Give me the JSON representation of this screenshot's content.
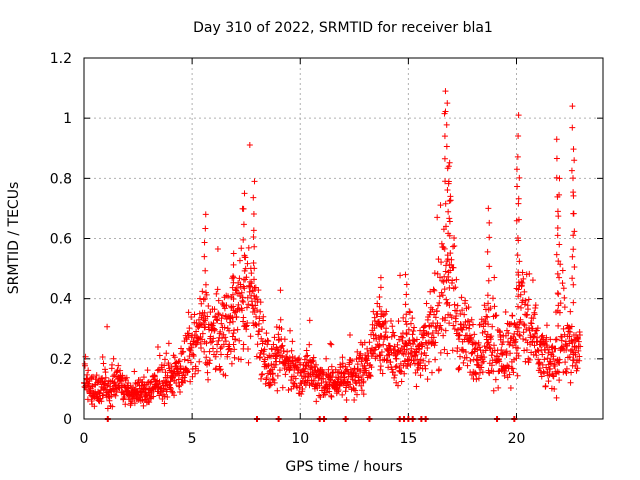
{
  "chart_data": {
    "type": "scatter",
    "title": "Day 310 of 2022, SRMTID for receiver bla1",
    "xlabel": "GPS time / hours",
    "ylabel": "SRMTID / TECUs",
    "xlim": [
      0,
      24
    ],
    "ylim": [
      0,
      1.2
    ],
    "xticks": [
      0,
      5,
      10,
      15,
      20
    ],
    "xtick_labels": [
      "0",
      "5",
      "10",
      "15",
      "20"
    ],
    "yticks": [
      0,
      0.2,
      0.4,
      0.6,
      0.8,
      1,
      1.2
    ],
    "ytick_labels": [
      "0",
      "0.2",
      "0.4",
      "0.6",
      "0.8",
      "1",
      "1.2"
    ],
    "grid": true,
    "marker": "plus",
    "color": "#ff0000",
    "bottom_markers_x": [
      1.1,
      8.0,
      9.0,
      10.9,
      11.1,
      12.1,
      13.2,
      14.6,
      14.8,
      15.0,
      15.2,
      15.6,
      15.8,
      19.1,
      19.9
    ],
    "envelope": [
      {
        "t": 0.0,
        "c": 0.13,
        "s": 0.04
      },
      {
        "t": 0.5,
        "c": 0.09,
        "s": 0.04
      },
      {
        "t": 0.8,
        "c": 0.12,
        "s": 0.06
      },
      {
        "t": 1.2,
        "c": 0.09,
        "s": 0.04
      },
      {
        "t": 1.6,
        "c": 0.14,
        "s": 0.05
      },
      {
        "t": 2.0,
        "c": 0.08,
        "s": 0.03
      },
      {
        "t": 2.5,
        "c": 0.09,
        "s": 0.03
      },
      {
        "t": 3.0,
        "c": 0.09,
        "s": 0.04
      },
      {
        "t": 3.5,
        "c": 0.12,
        "s": 0.04
      },
      {
        "t": 4.0,
        "c": 0.13,
        "s": 0.04
      },
      {
        "t": 4.5,
        "c": 0.17,
        "s": 0.06
      },
      {
        "t": 5.0,
        "c": 0.22,
        "s": 0.08
      },
      {
        "t": 5.5,
        "c": 0.3,
        "s": 0.1
      },
      {
        "t": 6.0,
        "c": 0.27,
        "s": 0.1
      },
      {
        "t": 6.5,
        "c": 0.3,
        "s": 0.1
      },
      {
        "t": 7.0,
        "c": 0.35,
        "s": 0.12
      },
      {
        "t": 7.5,
        "c": 0.4,
        "s": 0.13
      },
      {
        "t": 7.8,
        "c": 0.42,
        "s": 0.14
      },
      {
        "t": 8.2,
        "c": 0.28,
        "s": 0.1
      },
      {
        "t": 8.6,
        "c": 0.16,
        "s": 0.06
      },
      {
        "t": 9.0,
        "c": 0.2,
        "s": 0.07
      },
      {
        "t": 9.5,
        "c": 0.18,
        "s": 0.06
      },
      {
        "t": 10.0,
        "c": 0.14,
        "s": 0.05
      },
      {
        "t": 10.5,
        "c": 0.16,
        "s": 0.05
      },
      {
        "t": 11.0,
        "c": 0.13,
        "s": 0.05
      },
      {
        "t": 11.5,
        "c": 0.12,
        "s": 0.04
      },
      {
        "t": 12.0,
        "c": 0.14,
        "s": 0.05
      },
      {
        "t": 12.5,
        "c": 0.14,
        "s": 0.05
      },
      {
        "t": 13.0,
        "c": 0.18,
        "s": 0.06
      },
      {
        "t": 13.5,
        "c": 0.28,
        "s": 0.08
      },
      {
        "t": 14.0,
        "c": 0.25,
        "s": 0.07
      },
      {
        "t": 14.5,
        "c": 0.2,
        "s": 0.07
      },
      {
        "t": 15.0,
        "c": 0.25,
        "s": 0.08
      },
      {
        "t": 15.5,
        "c": 0.22,
        "s": 0.07
      },
      {
        "t": 16.0,
        "c": 0.3,
        "s": 0.1
      },
      {
        "t": 16.5,
        "c": 0.35,
        "s": 0.12
      },
      {
        "t": 16.9,
        "c": 0.55,
        "s": 0.22
      },
      {
        "t": 17.3,
        "c": 0.3,
        "s": 0.1
      },
      {
        "t": 17.8,
        "c": 0.25,
        "s": 0.08
      },
      {
        "t": 18.3,
        "c": 0.22,
        "s": 0.07
      },
      {
        "t": 18.8,
        "c": 0.3,
        "s": 0.12
      },
      {
        "t": 19.3,
        "c": 0.2,
        "s": 0.07
      },
      {
        "t": 19.8,
        "c": 0.25,
        "s": 0.09
      },
      {
        "t": 20.2,
        "c": 0.35,
        "s": 0.15
      },
      {
        "t": 20.7,
        "c": 0.28,
        "s": 0.1
      },
      {
        "t": 21.2,
        "c": 0.2,
        "s": 0.07
      },
      {
        "t": 21.7,
        "c": 0.18,
        "s": 0.06
      },
      {
        "t": 22.1,
        "c": 0.3,
        "s": 0.15
      },
      {
        "t": 22.6,
        "c": 0.22,
        "s": 0.08
      },
      {
        "t": 22.9,
        "c": 0.24,
        "s": 0.08
      }
    ],
    "peaks": [
      {
        "t": 5.6,
        "v": 0.68
      },
      {
        "t": 6.9,
        "v": 0.55
      },
      {
        "t": 7.4,
        "v": 0.75
      },
      {
        "t": 7.85,
        "v": 0.79
      },
      {
        "t": 13.7,
        "v": 0.47
      },
      {
        "t": 14.9,
        "v": 0.48
      },
      {
        "t": 16.7,
        "v": 1.09
      },
      {
        "t": 16.8,
        "v": 1.05
      },
      {
        "t": 16.9,
        "v": 0.84
      },
      {
        "t": 18.7,
        "v": 0.7
      },
      {
        "t": 20.1,
        "v": 1.01
      },
      {
        "t": 20.05,
        "v": 0.83
      },
      {
        "t": 21.9,
        "v": 0.93
      },
      {
        "t": 21.95,
        "v": 0.8
      },
      {
        "t": 22.6,
        "v": 1.04
      },
      {
        "t": 22.65,
        "v": 0.86
      }
    ]
  }
}
